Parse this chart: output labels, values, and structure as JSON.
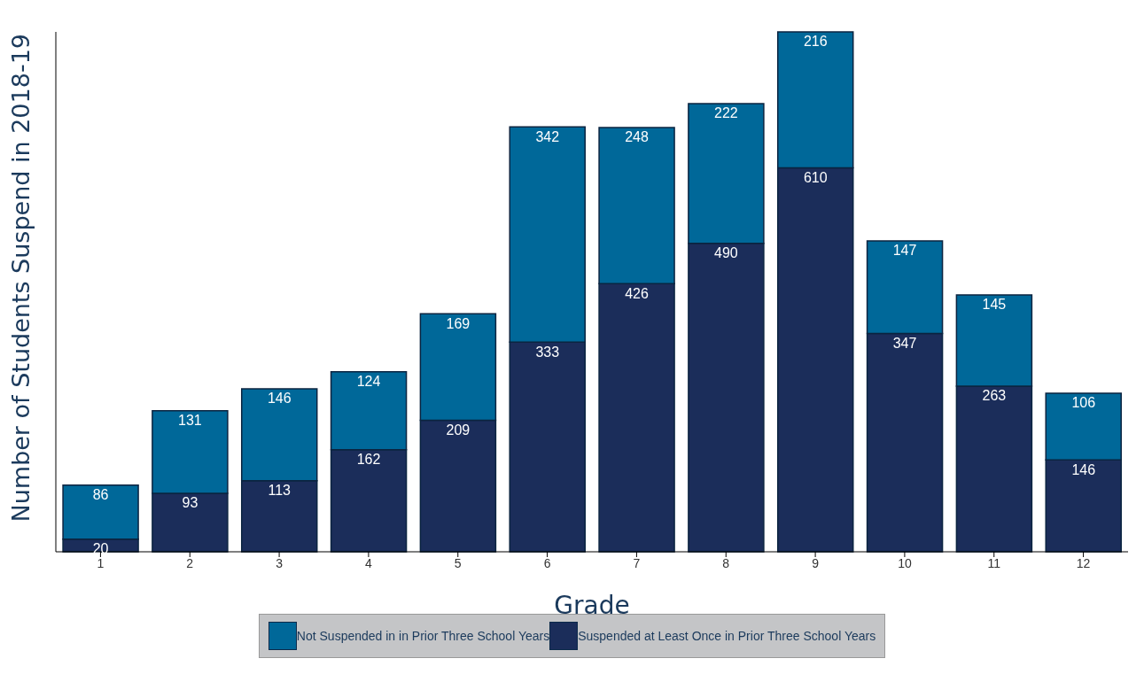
{
  "chart_data": {
    "type": "bar",
    "stacked": true,
    "xlabel": "Grade",
    "ylabel": "Number of Students Suspend in 2018-19",
    "categories": [
      "1",
      "2",
      "3",
      "4",
      "5",
      "6",
      "7",
      "8",
      "9",
      "10",
      "11",
      "12"
    ],
    "series": [
      {
        "name": "Suspended at Least Once in Prior Three School Years",
        "color": "#1b2d5a",
        "values": [
          20,
          93,
          113,
          162,
          209,
          333,
          426,
          490,
          610,
          347,
          263,
          146
        ]
      },
      {
        "name": "Not Suspended in in Prior Three School Years",
        "color": "#006899",
        "values": [
          86,
          131,
          146,
          124,
          169,
          342,
          248,
          222,
          216,
          147,
          145,
          106
        ]
      }
    ],
    "data_labels": true,
    "legend": "bottom",
    "grid": false
  }
}
